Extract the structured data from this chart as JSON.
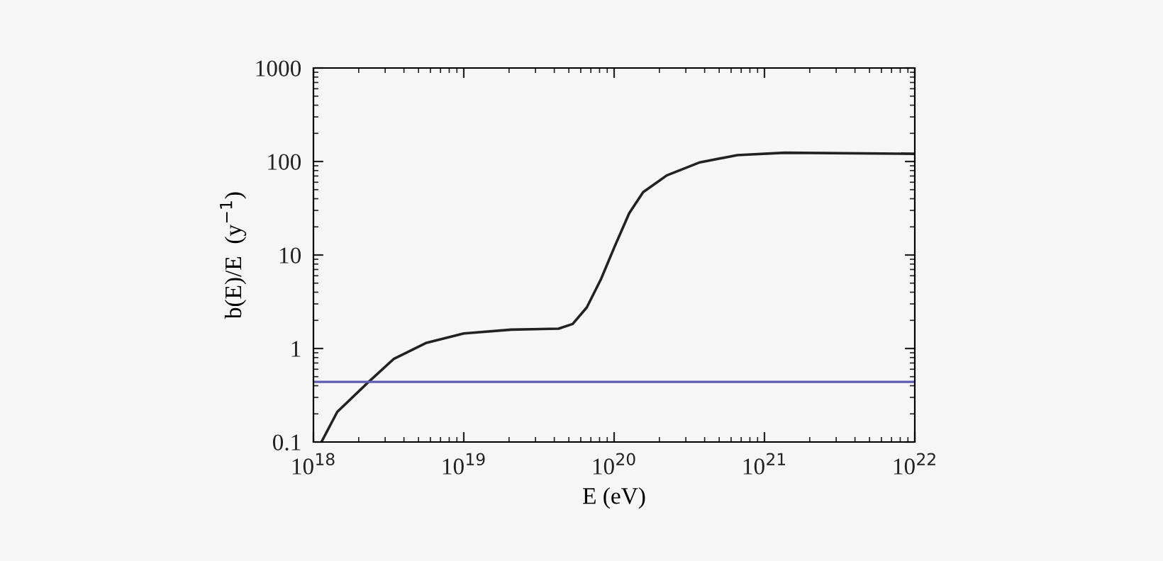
{
  "chart_data": {
    "type": "line",
    "xlabel": "E (eV)",
    "ylabel": "b(E)/E  (y$^{−1}$)",
    "log": "xy",
    "xlim": [
      1e+18,
      1e+22
    ],
    "ylim": [
      0.1,
      1000
    ],
    "xticks": [
      {
        "value": 1e+18,
        "label": "10$^{18}$"
      },
      {
        "value": 1e+19,
        "label": "10$^{19}$"
      },
      {
        "value": 1e+20,
        "label": "10$^{20}$"
      },
      {
        "value": 1e+21,
        "label": "10$^{21}$"
      },
      {
        "value": 1e+22,
        "label": "10$^{22}$"
      }
    ],
    "yticks": [
      0.1,
      1,
      10,
      100,
      1000
    ],
    "grid": false,
    "legend": false,
    "series": [
      {
        "color": "#222222",
        "x": [
          1.13e+18,
          1.44e+18,
          2.33e+18,
          3.41e+18,
          5.65e+18,
          1e+19,
          2.07e+19,
          4.27e+19,
          5.3e+19,
          6.58e+19,
          8.17e+19,
          1.01e+20,
          1.26e+20,
          1.56e+20,
          2.24e+20,
          3.72e+20,
          6.61e+20,
          1.36e+21,
          1e+22
        ],
        "values": [
          0.1,
          0.21,
          0.44,
          0.77,
          1.15,
          1.45,
          1.59,
          1.63,
          1.83,
          2.75,
          5.5,
          12.4,
          28,
          47,
          71,
          98,
          117,
          124,
          121
        ]
      }
    ],
    "ref_lines": [
      {
        "axis": "y",
        "value": 0.44,
        "color": "#5c5cb0"
      }
    ]
  }
}
